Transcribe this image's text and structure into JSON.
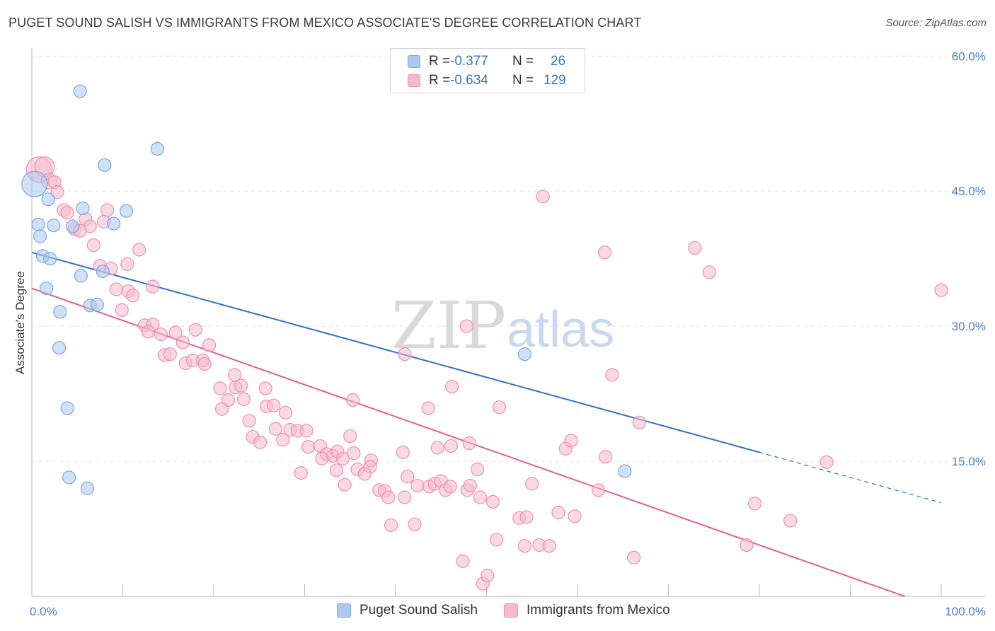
{
  "title": "PUGET SOUND SALISH VS IMMIGRANTS FROM MEXICO ASSOCIATE'S DEGREE CORRELATION CHART",
  "source": "Source: ZipAtlas.com",
  "watermark": {
    "zip": "ZIP",
    "atlas": "atlas"
  },
  "colors": {
    "blue_fill": "#aac8f0",
    "blue_stroke": "#7aa6e0",
    "blue_line": "#2f72c9",
    "pink_fill": "#f6b9cc",
    "pink_stroke": "#ee8fae",
    "pink_line": "#e0608e",
    "tick_text": "#4a7fd0",
    "grid": "#e3e3e3"
  },
  "legend": {
    "rows": [
      {
        "r_label": "R =",
        "r_value": "-0.377",
        "n_label": "N =",
        "n_value": "26"
      },
      {
        "r_label": "R =",
        "r_value": "-0.634",
        "n_label": "N =",
        "n_value": "129"
      }
    ]
  },
  "chart_data": {
    "type": "scatter",
    "xlabel": "",
    "ylabel": "Associate's Degree",
    "xlim": [
      0,
      100
    ],
    "ylim": [
      0,
      60
    ],
    "x_tick_labels": [
      "0.0%",
      "100.0%"
    ],
    "y_ticks": [
      15,
      30,
      45,
      60
    ],
    "y_tick_labels": [
      "15.0%",
      "30.0%",
      "45.0%",
      "60.0%"
    ],
    "grid": "horizontal dashed",
    "legend_position": "top-center",
    "series": [
      {
        "name": "Puget Sound Salish",
        "color": "blue",
        "trend": {
          "x0": 0,
          "y0": 38.2,
          "x1": 80,
          "y1": 16.0,
          "dashed_to_x": 100,
          "dashed_to_y": 10.4
        },
        "points": [
          [
            0.3,
            45.8,
            18
          ],
          [
            5.3,
            56.1,
            9
          ],
          [
            13.8,
            49.7,
            9
          ],
          [
            8.0,
            47.9,
            9
          ],
          [
            1.8,
            44.1,
            9
          ],
          [
            5.6,
            43.1,
            9
          ],
          [
            10.4,
            42.8,
            9
          ],
          [
            0.7,
            41.3,
            9
          ],
          [
            2.4,
            41.2,
            9
          ],
          [
            4.5,
            41.1,
            9
          ],
          [
            9.0,
            41.4,
            9
          ],
          [
            0.9,
            40.0,
            9
          ],
          [
            1.2,
            37.8,
            9
          ],
          [
            2.0,
            37.5,
            9
          ],
          [
            7.8,
            36.1,
            9
          ],
          [
            5.4,
            35.6,
            9
          ],
          [
            1.6,
            34.2,
            9
          ],
          [
            6.4,
            32.3,
            9
          ],
          [
            7.2,
            32.4,
            9
          ],
          [
            3.1,
            31.6,
            9
          ],
          [
            3.0,
            27.6,
            9
          ],
          [
            3.9,
            20.9,
            9
          ],
          [
            4.1,
            13.2,
            9
          ],
          [
            6.1,
            12.0,
            9
          ],
          [
            54.2,
            26.9,
            9
          ],
          [
            65.2,
            13.9,
            9
          ]
        ]
      },
      {
        "name": "Immigrants from Mexico",
        "color": "pink",
        "trend": {
          "x0": 0,
          "y0": 34.2,
          "x1": 96,
          "y1": 0
        },
        "points": [
          [
            0.8,
            47.4,
            18
          ],
          [
            1.4,
            47.7,
            14
          ],
          [
            1.9,
            46.1,
            11
          ],
          [
            2.5,
            46.0,
            9
          ],
          [
            2.8,
            44.9,
            9
          ],
          [
            3.5,
            42.9,
            9
          ],
          [
            3.9,
            42.6,
            9
          ],
          [
            8.3,
            42.9,
            9
          ],
          [
            5.9,
            41.9,
            9
          ],
          [
            7.9,
            41.6,
            9
          ],
          [
            6.4,
            41.1,
            9
          ],
          [
            4.7,
            40.8,
            9
          ],
          [
            5.3,
            40.6,
            9
          ],
          [
            6.8,
            39.0,
            9
          ],
          [
            11.8,
            38.5,
            9
          ],
          [
            7.5,
            36.7,
            9
          ],
          [
            8.7,
            36.4,
            9
          ],
          [
            10.5,
            36.9,
            9
          ],
          [
            13.3,
            34.4,
            9
          ],
          [
            9.3,
            34.1,
            9
          ],
          [
            10.6,
            33.9,
            9
          ],
          [
            11.1,
            33.4,
            9
          ],
          [
            9.9,
            31.8,
            9
          ],
          [
            12.4,
            30.1,
            9
          ],
          [
            13.3,
            30.2,
            9
          ],
          [
            12.8,
            29.4,
            9
          ],
          [
            14.2,
            29.1,
            9
          ],
          [
            15.8,
            29.3,
            9
          ],
          [
            18.0,
            29.6,
            9
          ],
          [
            16.6,
            28.2,
            9
          ],
          [
            19.5,
            27.9,
            9
          ],
          [
            14.6,
            26.8,
            9
          ],
          [
            15.2,
            26.9,
            9
          ],
          [
            16.9,
            25.9,
            9
          ],
          [
            17.7,
            26.2,
            9
          ],
          [
            18.8,
            26.2,
            9
          ],
          [
            19.0,
            25.8,
            9
          ],
          [
            22.3,
            24.6,
            9
          ],
          [
            20.7,
            23.1,
            9
          ],
          [
            22.4,
            23.2,
            9
          ],
          [
            23.0,
            23.4,
            9
          ],
          [
            25.7,
            23.1,
            9
          ],
          [
            21.6,
            21.8,
            9
          ],
          [
            23.3,
            21.9,
            9
          ],
          [
            20.9,
            20.8,
            9
          ],
          [
            25.8,
            21.1,
            9
          ],
          [
            26.6,
            21.2,
            9
          ],
          [
            27.9,
            20.4,
            9
          ],
          [
            23.9,
            19.5,
            9
          ],
          [
            26.8,
            18.6,
            9
          ],
          [
            28.4,
            18.5,
            9
          ],
          [
            29.2,
            18.4,
            9
          ],
          [
            30.2,
            18.4,
            9
          ],
          [
            24.3,
            17.7,
            9
          ],
          [
            25.1,
            17.1,
            9
          ],
          [
            27.6,
            17.4,
            9
          ],
          [
            30.4,
            16.6,
            9
          ],
          [
            31.7,
            16.7,
            9
          ],
          [
            32.4,
            15.8,
            9
          ],
          [
            33.1,
            15.6,
            9
          ],
          [
            33.6,
            16.1,
            9
          ],
          [
            34.2,
            15.3,
            9
          ],
          [
            31.9,
            15.3,
            9
          ],
          [
            35.4,
            15.9,
            9
          ],
          [
            37.3,
            15.1,
            9
          ],
          [
            37.2,
            14.4,
            9
          ],
          [
            29.6,
            13.7,
            9
          ],
          [
            33.5,
            14.0,
            9
          ],
          [
            35.8,
            14.1,
            9
          ],
          [
            36.6,
            13.6,
            9
          ],
          [
            34.4,
            12.4,
            9
          ],
          [
            38.2,
            11.8,
            9
          ],
          [
            38.8,
            11.7,
            9
          ],
          [
            39.2,
            11.0,
            9
          ],
          [
            41.0,
            11.0,
            9
          ],
          [
            42.4,
            12.3,
            9
          ],
          [
            43.7,
            12.2,
            9
          ],
          [
            44.3,
            12.5,
            9
          ],
          [
            45.0,
            12.8,
            9
          ],
          [
            45.5,
            11.8,
            9
          ],
          [
            46.0,
            12.2,
            9
          ],
          [
            47.9,
            11.8,
            9
          ],
          [
            48.2,
            12.3,
            9
          ],
          [
            49.0,
            14.1,
            9
          ],
          [
            49.3,
            11.0,
            9
          ],
          [
            50.7,
            10.5,
            9
          ],
          [
            39.5,
            7.9,
            9
          ],
          [
            41.3,
            13.3,
            9
          ],
          [
            42.1,
            8.0,
            9
          ],
          [
            44.6,
            16.5,
            9
          ],
          [
            46.1,
            16.7,
            9
          ],
          [
            48.1,
            17.0,
            9
          ],
          [
            43.6,
            20.9,
            9
          ],
          [
            46.2,
            23.3,
            9
          ],
          [
            41.0,
            26.9,
            9
          ],
          [
            47.8,
            30.0,
            9
          ],
          [
            35.0,
            17.8,
            9
          ],
          [
            35.3,
            21.8,
            9
          ],
          [
            40.8,
            16.0,
            9
          ],
          [
            51.4,
            21.0,
            9
          ],
          [
            53.6,
            8.7,
            9
          ],
          [
            54.4,
            8.8,
            9
          ],
          [
            55.0,
            12.5,
            9
          ],
          [
            54.2,
            5.6,
            9
          ],
          [
            55.8,
            5.7,
            9
          ],
          [
            56.9,
            5.6,
            9
          ],
          [
            57.9,
            9.3,
            9
          ],
          [
            58.7,
            16.4,
            9
          ],
          [
            59.3,
            17.3,
            9
          ],
          [
            59.7,
            8.9,
            9
          ],
          [
            62.3,
            11.8,
            9
          ],
          [
            63.0,
            38.2,
            9
          ],
          [
            56.2,
            44.4,
            9
          ],
          [
            63.1,
            15.5,
            9
          ],
          [
            63.8,
            24.6,
            9
          ],
          [
            66.2,
            4.3,
            9
          ],
          [
            66.8,
            19.3,
            9
          ],
          [
            72.9,
            38.7,
            9
          ],
          [
            74.5,
            36.0,
            9
          ],
          [
            78.6,
            5.7,
            9
          ],
          [
            79.5,
            10.3,
            9
          ],
          [
            83.4,
            8.4,
            9
          ],
          [
            87.4,
            14.9,
            9
          ],
          [
            100.0,
            34.0,
            9
          ],
          [
            47.4,
            3.9,
            9
          ],
          [
            49.6,
            1.4,
            9
          ],
          [
            50.1,
            2.3,
            9
          ],
          [
            51.1,
            6.3,
            9
          ]
        ]
      }
    ]
  }
}
